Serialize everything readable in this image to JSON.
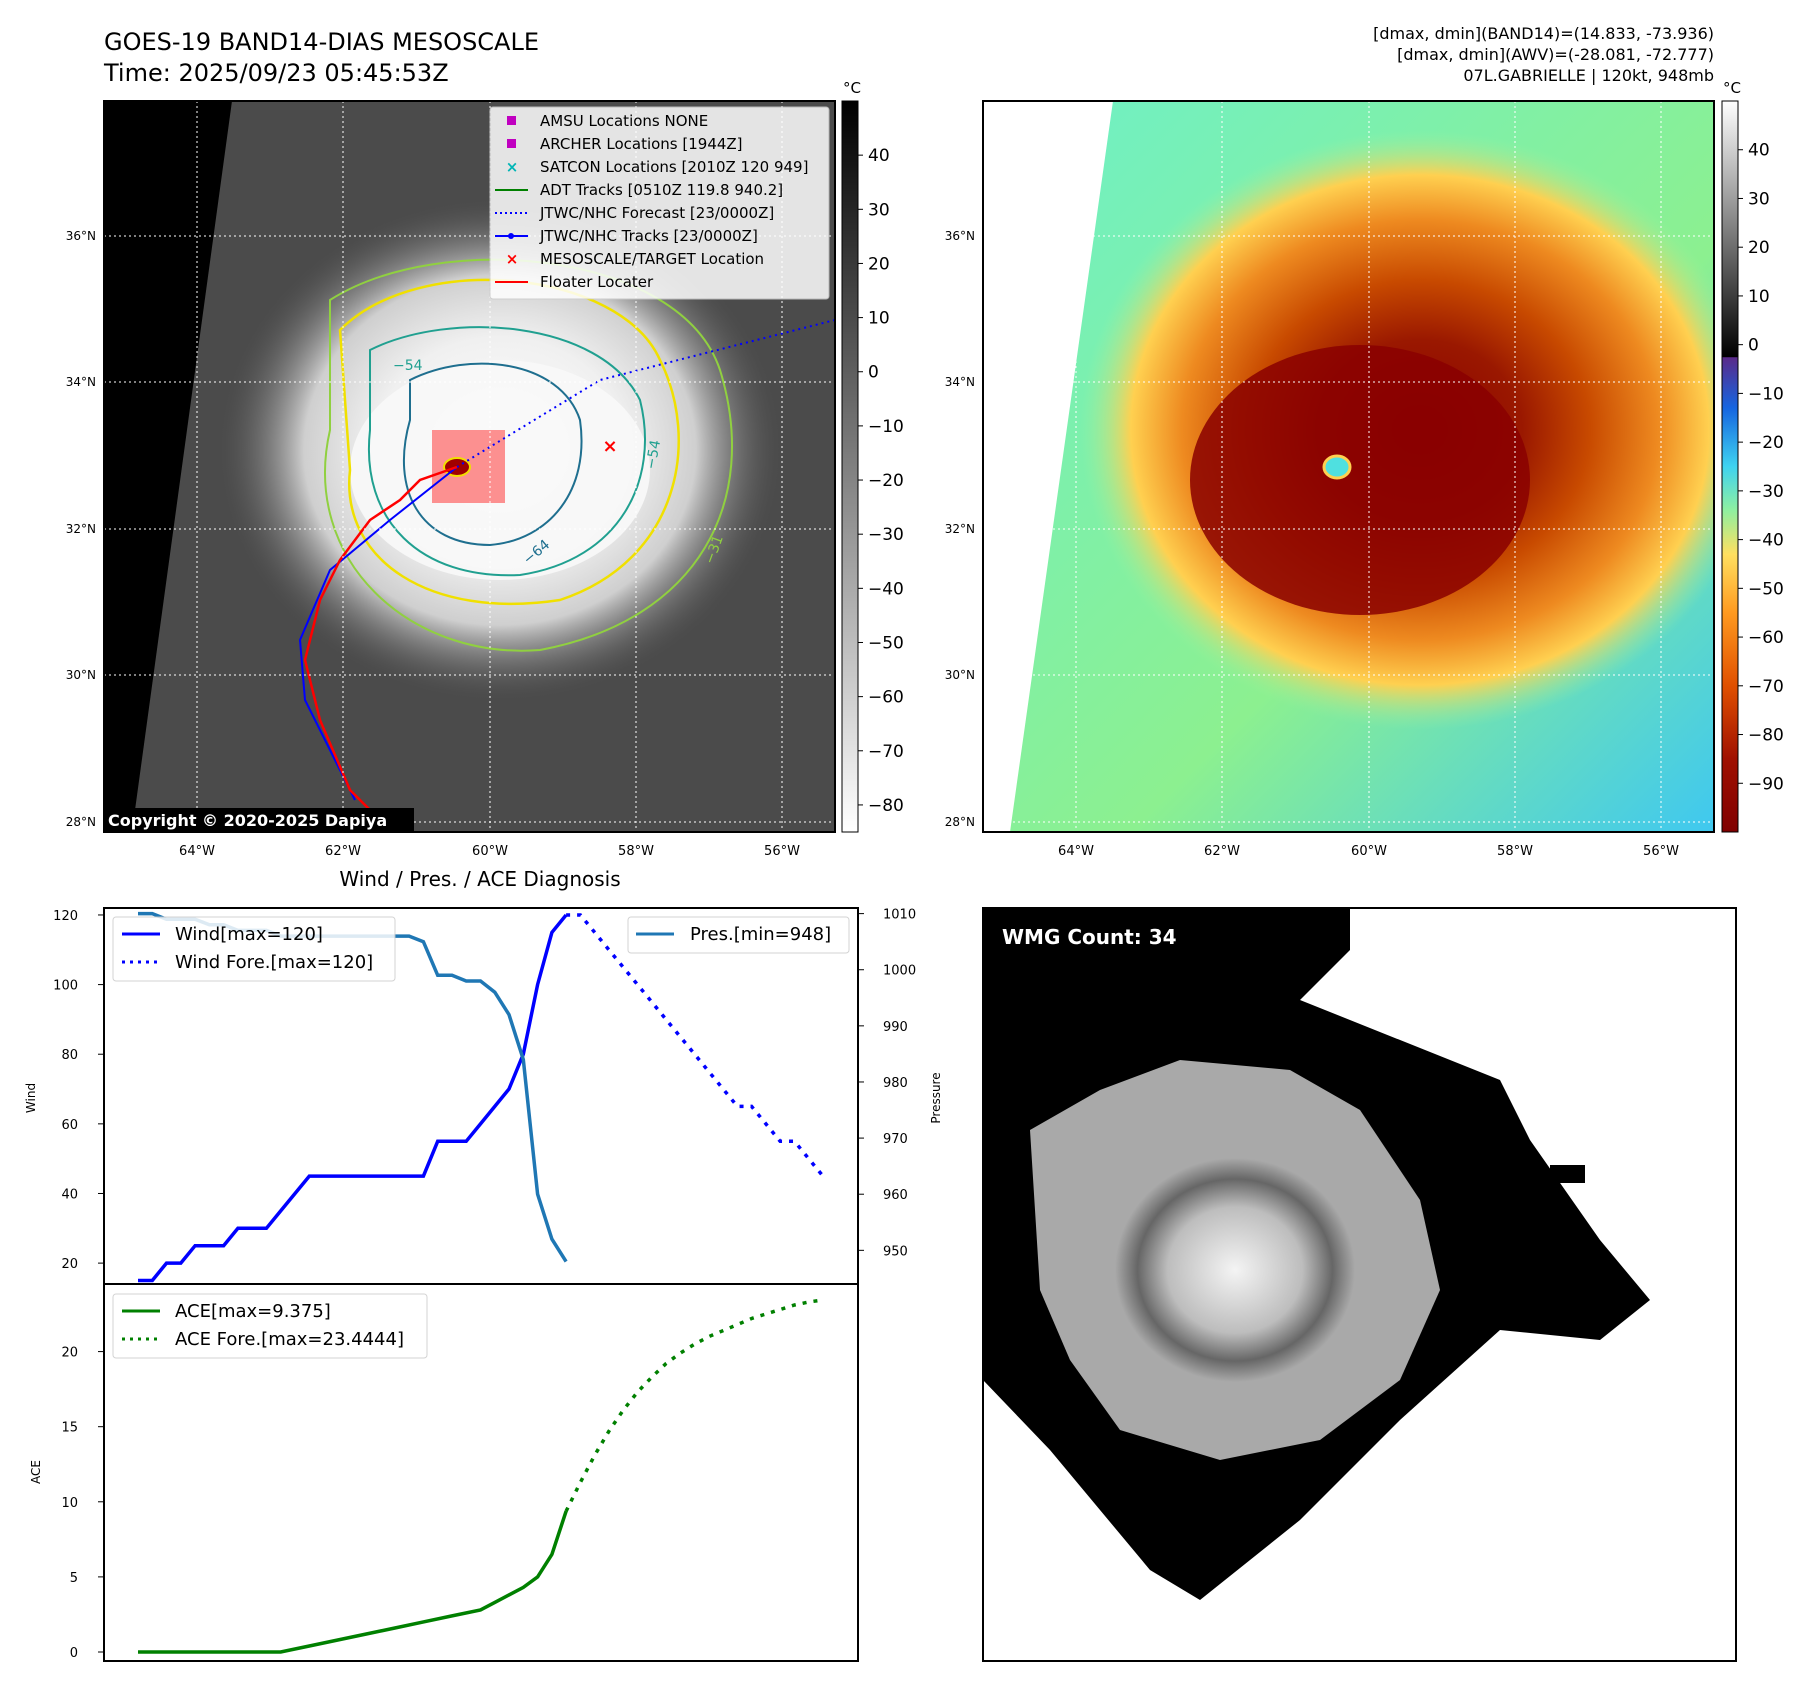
{
  "header": {
    "title_line1": "GOES-19 BAND14-DIAS MESOSCALE",
    "title_line2": "Time: 2025/09/23 05:45:53Z",
    "info_line1": "[dmax, dmin](BAND14)=(14.833, -73.936)",
    "info_line2": "[dmax, dmin](AWV)=(-28.081, -72.777)",
    "info_line3": "07L.GABRIELLE | 120kt, 948mb"
  },
  "maps": {
    "lat_labels": [
      "36°N",
      "34°N",
      "32°N",
      "30°N",
      "28°N"
    ],
    "lon_labels": [
      "64°W",
      "62°W",
      "60°W",
      "58°W",
      "56°W"
    ],
    "colorbar_unit": "°C",
    "colorbar1_ticks": [
      "40",
      "30",
      "20",
      "10",
      "0",
      "−10",
      "−20",
      "−30",
      "−40",
      "−50",
      "−60",
      "−70",
      "−80"
    ],
    "colorbar2_ticks": [
      "40",
      "30",
      "20",
      "10",
      "0",
      "−10",
      "−20",
      "−30",
      "−40",
      "−50",
      "−60",
      "−70",
      "−80",
      "−90"
    ],
    "contour_labels": [
      "−54",
      "−54",
      "−64",
      "−31"
    ],
    "copyright": "Copyright © 2020-2025 Dapiya",
    "legend": [
      {
        "label": "AMSU Locations NONE",
        "color": "#c000c0",
        "marker": "square"
      },
      {
        "label": "ARCHER Locations [1944Z]",
        "color": "#c000c0",
        "marker": "square"
      },
      {
        "label": "SATCON Locations [2010Z 120 949]",
        "color": "#00b5b5",
        "marker": "x"
      },
      {
        "label": "ADT Tracks [0510Z 119.8 940.2]",
        "color": "#008000",
        "marker": "line"
      },
      {
        "label": "JTWC/NHC Forecast [23/0000Z]",
        "color": "#0000ff",
        "marker": "dotted"
      },
      {
        "label": "JTWC/NHC Tracks [23/0000Z]",
        "color": "#0000ff",
        "marker": "line-dot"
      },
      {
        "label": "MESOSCALE/TARGET Location",
        "color": "#ff0000",
        "marker": "x"
      },
      {
        "label": "Floater Locater",
        "color": "#ff0000",
        "marker": "line"
      }
    ]
  },
  "chart_data": [
    {
      "type": "line",
      "title": "Wind / Pres. / ACE Diagnosis",
      "ylabel": "Wind",
      "y2label": "Pressure",
      "ylim": [
        14,
        122
      ],
      "y2lim": [
        944,
        1011
      ],
      "yticks": [
        20,
        40,
        60,
        80,
        100,
        120
      ],
      "y2ticks": [
        950,
        960,
        970,
        980,
        990,
        1000,
        1010
      ],
      "series": [
        {
          "name": "Wind[max=120]",
          "axis": "left",
          "style": "solid",
          "color": "#0000ff",
          "x": [
            0,
            1,
            2,
            3,
            4,
            5,
            6,
            7,
            8,
            9,
            10,
            11,
            12,
            13,
            14,
            15,
            16,
            17,
            18,
            19,
            20,
            21,
            22,
            23,
            24,
            25,
            26,
            27,
            28,
            29,
            30
          ],
          "values": [
            15,
            15,
            20,
            20,
            25,
            25,
            25,
            30,
            30,
            30,
            35,
            40,
            45,
            45,
            45,
            45,
            45,
            45,
            45,
            45,
            45,
            55,
            55,
            55,
            60,
            65,
            70,
            80,
            100,
            115,
            120
          ]
        },
        {
          "name": "Wind Fore.[max=120]",
          "axis": "left",
          "style": "dotted",
          "color": "#0000ff",
          "x": [
            30,
            31,
            32,
            33,
            34,
            35,
            36,
            37,
            38,
            39,
            40,
            41,
            42,
            43,
            44,
            45,
            46,
            47,
            48
          ],
          "values": [
            120,
            120,
            115,
            110,
            105,
            100,
            95,
            90,
            85,
            80,
            75,
            70,
            65,
            65,
            60,
            55,
            55,
            50,
            45
          ]
        },
        {
          "name": "Pres.[min=948]",
          "axis": "right",
          "style": "solid",
          "color": "#1f77b4",
          "x": [
            0,
            1,
            2,
            3,
            4,
            5,
            6,
            7,
            8,
            9,
            10,
            11,
            12,
            13,
            14,
            15,
            16,
            17,
            18,
            19,
            20,
            21,
            22,
            23,
            24,
            25,
            26,
            27,
            28,
            29,
            30
          ],
          "values": [
            1010,
            1010,
            1009,
            1009,
            1009,
            1008,
            1008,
            1007,
            1007,
            1007,
            1006,
            1006,
            1006,
            1006,
            1006,
            1006,
            1006,
            1006,
            1006,
            1006,
            1005,
            999,
            999,
            998,
            998,
            996,
            992,
            984,
            960,
            952,
            948
          ]
        }
      ]
    },
    {
      "type": "line",
      "ylabel": "ACE",
      "ylim": [
        -0.6,
        24.5
      ],
      "yticks": [
        0,
        5,
        10,
        15,
        20
      ],
      "series": [
        {
          "name": "ACE[max=9.375]",
          "style": "solid",
          "color": "#008000",
          "x": [
            0,
            4,
            8,
            9,
            10,
            12,
            14,
            16,
            18,
            20,
            22,
            24,
            25,
            26,
            27,
            28,
            29,
            30
          ],
          "values": [
            0,
            0,
            0,
            0,
            0,
            0.4,
            0.8,
            1.2,
            1.6,
            2,
            2.4,
            2.8,
            3.3,
            3.8,
            4.3,
            5,
            6.5,
            9.375
          ]
        },
        {
          "name": "ACE Fore.[max=23.4444]",
          "style": "dotted",
          "color": "#008000",
          "x": [
            30,
            31,
            32,
            33,
            34,
            35,
            36,
            37,
            38,
            39,
            40,
            41,
            42,
            43,
            44,
            45,
            46,
            47,
            48
          ],
          "values": [
            9.375,
            11.3,
            13.1,
            14.7,
            16.1,
            17.3,
            18.3,
            19.2,
            19.9,
            20.5,
            21,
            21.4,
            21.8,
            22.2,
            22.5,
            22.8,
            23.1,
            23.3,
            23.4444
          ]
        }
      ]
    }
  ],
  "wmg": {
    "label": "WMG Count: 34"
  }
}
